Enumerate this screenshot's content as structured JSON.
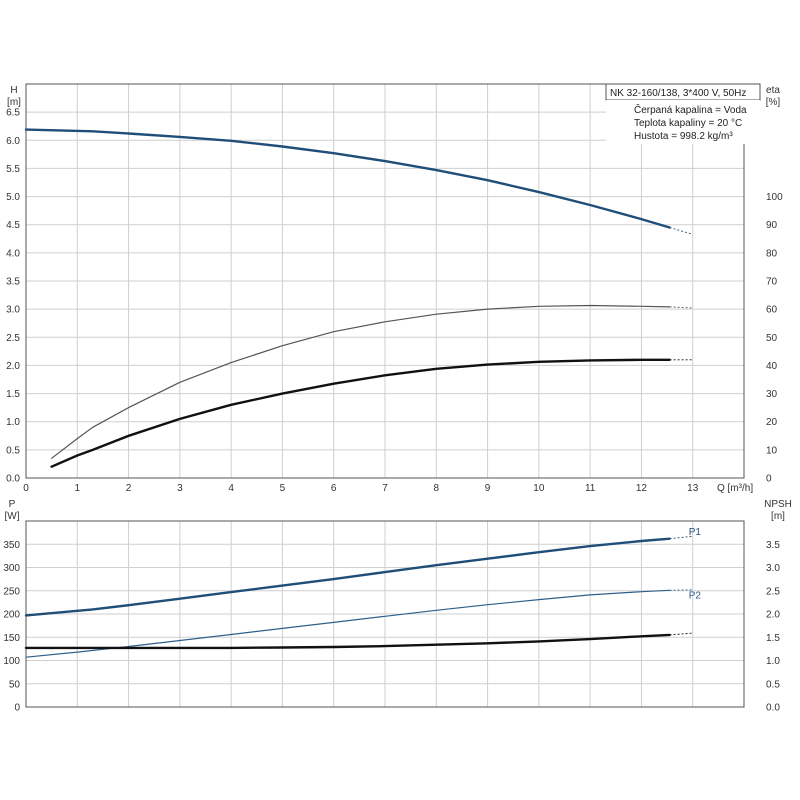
{
  "info": {
    "title": "NK 32-160/138, 3*400 V, 50Hz",
    "lines": [
      "Čerpaná kapalina = Voda",
      "Teplota kapaliny = 20 °C",
      "Hustota = 998.2 kg/m³"
    ]
  },
  "chart_data": [
    {
      "type": "line",
      "panel": "top",
      "grid": true,
      "xlabel": "Q [m³/h]",
      "xlim": [
        0,
        14
      ],
      "xticks": [
        0,
        1,
        2,
        3,
        4,
        5,
        6,
        7,
        8,
        9,
        10,
        11,
        12,
        13
      ],
      "y_left": {
        "label_line1": "H",
        "label_line2": "[m]",
        "lim": [
          0,
          7
        ],
        "ticks": [
          0,
          0.5,
          1,
          1.5,
          2,
          2.5,
          3,
          3.5,
          4,
          4.5,
          5,
          5.5,
          6,
          6.5
        ],
        "tick_labels": [
          "0.0",
          "0.5",
          "1.0",
          "1.5",
          "2.0",
          "2.5",
          "3.0",
          "3.5",
          "4.0",
          "4.5",
          "5.0",
          "5.5",
          "6.0",
          "6.5"
        ]
      },
      "y_right": {
        "label_line1": "eta",
        "label_line2": "[%]",
        "lim": [
          0,
          140
        ],
        "ticks": [
          0,
          10,
          20,
          30,
          40,
          50,
          60,
          70,
          80,
          90,
          100
        ],
        "tick_labels": [
          "0",
          "10",
          "20",
          "30",
          "40",
          "50",
          "60",
          "70",
          "80",
          "90",
          "100"
        ]
      },
      "series": [
        {
          "axis": "left",
          "color": "#1f4e79",
          "width": 2.4,
          "x": [
            0,
            1.3,
            2,
            3,
            4,
            5,
            6,
            7,
            8,
            9,
            10,
            11,
            12,
            12.55
          ],
          "y": [
            6.19,
            6.16,
            6.12,
            6.06,
            5.99,
            5.89,
            5.77,
            5.63,
            5.47,
            5.29,
            5.08,
            4.85,
            4.6,
            4.45
          ],
          "ext_x": [
            12.55,
            13.0
          ],
          "ext_y": [
            4.45,
            4.33
          ]
        },
        {
          "axis": "right",
          "color": "#555555",
          "width": 1.2,
          "x": [
            0.5,
            1,
            1.3,
            2,
            3,
            4,
            5,
            6,
            7,
            8,
            9,
            10,
            11,
            12,
            12.55
          ],
          "y": [
            7,
            14,
            18,
            25,
            34,
            41,
            47,
            52,
            55.5,
            58.2,
            60,
            61,
            61.3,
            61,
            60.8
          ],
          "ext_x": [
            12.55,
            13.0
          ],
          "ext_y": [
            60.8,
            60.4
          ]
        },
        {
          "axis": "right",
          "color": "#111111",
          "width": 2.4,
          "x": [
            0.5,
            1,
            1.3,
            2,
            3,
            4,
            5,
            6,
            7,
            8,
            9,
            10,
            11,
            12,
            12.55
          ],
          "y": [
            4,
            8,
            10,
            15,
            21,
            26,
            30,
            33.5,
            36.5,
            38.8,
            40.3,
            41.3,
            41.8,
            42,
            42
          ],
          "ext_x": [
            12.55,
            13.0
          ],
          "ext_y": [
            42,
            42
          ]
        }
      ]
    },
    {
      "type": "line",
      "panel": "bottom",
      "grid": true,
      "xlim": [
        0,
        14
      ],
      "y_left": {
        "label_line1": "P",
        "label_line2": "[W]",
        "lim": [
          0,
          400
        ],
        "ticks": [
          0,
          50,
          100,
          150,
          200,
          250,
          300,
          350
        ],
        "tick_labels": [
          "0",
          "50",
          "100",
          "150",
          "200",
          "250",
          "300",
          "350"
        ]
      },
      "y_right": {
        "label_line1": "NPSH",
        "label_line2": "[m]",
        "lim": [
          0,
          4.0
        ],
        "ticks": [
          0,
          0.5,
          1,
          1.5,
          2,
          2.5,
          3,
          3.5
        ],
        "tick_labels": [
          "0.0",
          "0.5",
          "1.0",
          "1.5",
          "2.0",
          "2.5",
          "3.0",
          "3.5"
        ]
      },
      "series": [
        {
          "name": "P1",
          "axis": "left",
          "color": "#1f4e79",
          "width": 2.4,
          "x": [
            0,
            1.3,
            2,
            3,
            4,
            5,
            6,
            7,
            8,
            9,
            10,
            11,
            12,
            12.55
          ],
          "y": [
            197,
            210,
            219,
            233,
            247,
            261,
            275,
            290,
            305,
            319,
            333,
            346,
            357,
            362
          ],
          "ext_x": [
            12.55,
            13.0
          ],
          "ext_y": [
            362,
            367
          ],
          "label_at": [
            13.0,
            376
          ]
        },
        {
          "name": "P2",
          "axis": "left",
          "color": "#2e5f8a",
          "width": 1.2,
          "x": [
            0,
            1,
            2,
            3,
            4,
            5,
            6,
            7,
            8,
            9,
            10,
            11,
            12,
            12.55
          ],
          "y": [
            107,
            118,
            130,
            143,
            156,
            169,
            182,
            195,
            208,
            220,
            231,
            241,
            248,
            251
          ],
          "ext_x": [
            12.55,
            13.0
          ],
          "ext_y": [
            251,
            252
          ],
          "label_at": [
            13.0,
            240
          ]
        },
        {
          "axis": "right",
          "color": "#111111",
          "width": 2.4,
          "x": [
            0,
            1.3,
            2,
            3,
            4,
            5,
            6,
            7,
            8,
            9,
            10,
            11,
            12,
            12.55
          ],
          "y": [
            1.27,
            1.27,
            1.27,
            1.27,
            1.27,
            1.28,
            1.29,
            1.31,
            1.34,
            1.37,
            1.41,
            1.46,
            1.52,
            1.55
          ],
          "ext_x": [
            12.55,
            13.0
          ],
          "ext_y": [
            1.55,
            1.59
          ]
        }
      ]
    }
  ]
}
